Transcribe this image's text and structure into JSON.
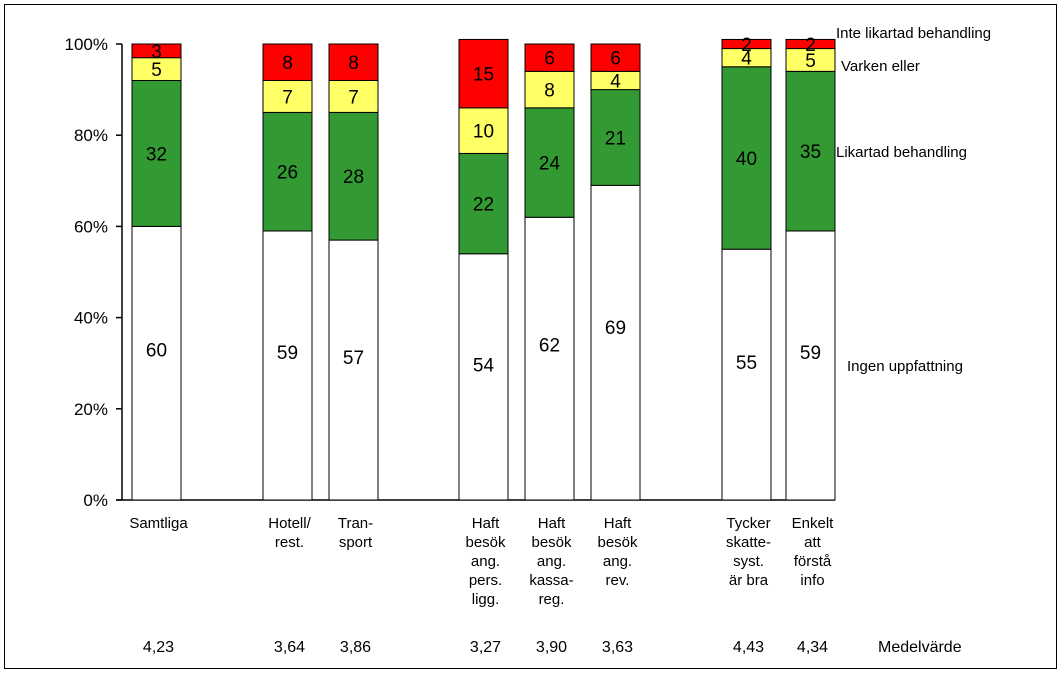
{
  "colors": {
    "Ingen uppfattning": "#ffffff",
    "Likartad behandling": "#339933",
    "Varken eller": "#ffff66",
    "Inte likartad behandling": "#ff0000"
  },
  "chart_data": {
    "type": "bar",
    "stacked": true,
    "percent": true,
    "ylim": [
      0,
      100
    ],
    "yticks": [
      "0%",
      "20%",
      "40%",
      "60%",
      "80%",
      "100%"
    ],
    "categories": [
      [
        "Samtliga"
      ],
      [
        "Hotell/",
        "rest."
      ],
      [
        "Tran-",
        "sport"
      ],
      [
        "Haft",
        "besök",
        "ang.",
        "pers.",
        "ligg."
      ],
      [
        "Haft",
        "besök",
        "ang.",
        "kassa-",
        "reg."
      ],
      [
        "Haft",
        "besök",
        "ang.",
        "rev."
      ],
      [
        "Tycker",
        "skatte-",
        "syst.",
        "är bra"
      ],
      [
        "Enkelt",
        "att",
        "förstå",
        "info"
      ]
    ],
    "series": [
      {
        "name": "Ingen uppfattning",
        "values": [
          60,
          59,
          57,
          54,
          62,
          69,
          55,
          59
        ]
      },
      {
        "name": "Likartad behandling",
        "values": [
          32,
          26,
          28,
          22,
          24,
          21,
          40,
          35
        ]
      },
      {
        "name": "Varken eller",
        "values": [
          5,
          7,
          7,
          10,
          8,
          4,
          4,
          5
        ]
      },
      {
        "name": "Inte likartad behandling",
        "values": [
          3,
          8,
          8,
          15,
          6,
          6,
          2,
          2
        ]
      }
    ],
    "mean_label": "Medelvärde",
    "means": [
      "4,23",
      "3,64",
      "3,86",
      "3,27",
      "3,90",
      "3,63",
      "4,43",
      "4,34"
    ],
    "legend_placement": "right"
  }
}
